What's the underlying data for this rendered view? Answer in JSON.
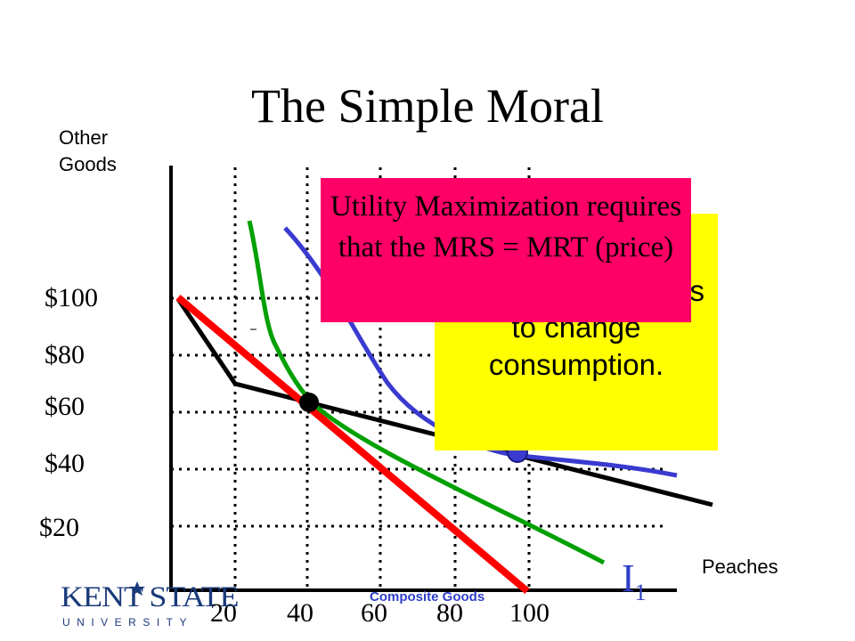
{
  "title": "The Simple Moral",
  "y_axis_label": "Other Goods",
  "x_axis_label": "Peaches",
  "y_ticks": [
    "$100",
    "$80",
    "$60",
    "$40",
    "$20"
  ],
  "x_ticks": [
    "20",
    "40",
    "60",
    "80",
    "100"
  ],
  "pink_box_text": "Utility Maximization requires that the MRS = MRT (price)",
  "yellow_box_text": "are unequal, it pays to change consumption.",
  "indifference_label_letter": "I",
  "indifference_label_sub": "1",
  "composite_label": "Composite Goods",
  "logo": {
    "name": "KENT STATE",
    "subtitle": "UNIVERSITY"
  },
  "colors": {
    "red_line": "#ff0000",
    "black_line": "#000000",
    "green_curve": "#00a000",
    "blue_curve": "#3a3ad0",
    "pink_box": "#ff0066",
    "yellow_box": "#ffff00"
  }
}
